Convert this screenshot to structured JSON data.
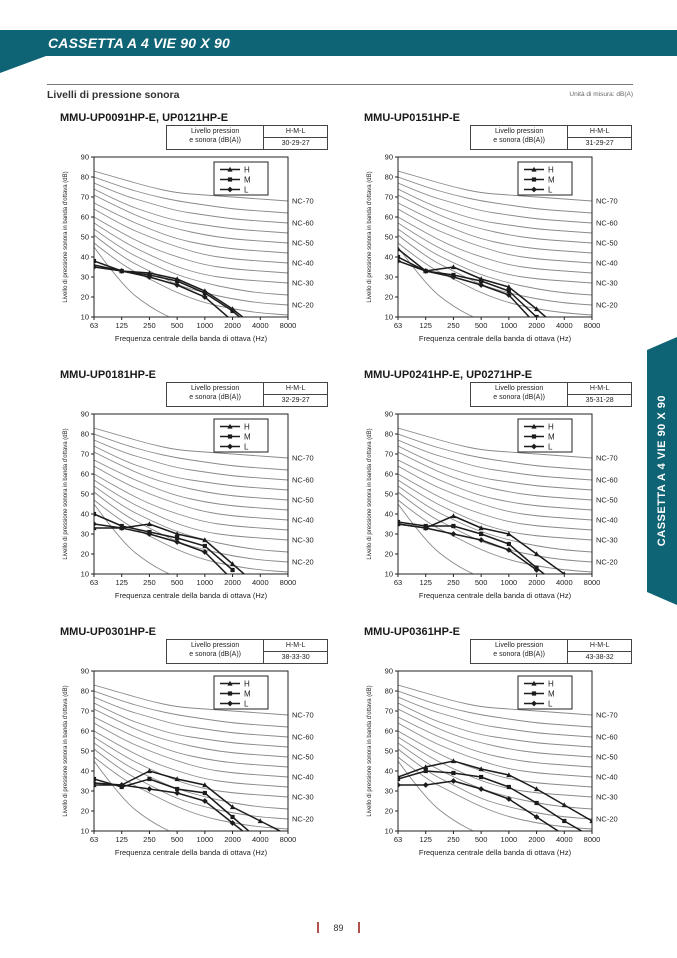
{
  "page": {
    "banner_title": "CASSETTA A 4 VIE 90 X 90",
    "section_title": "Livelli di pressione sonora",
    "unit_note": "Unità di misura: dB(A)",
    "side_tab_label": "CASSETTA A 4 VIE 90 X 90",
    "page_number": "89"
  },
  "colors": {
    "teal": "#0e6374",
    "nc_curve": "#8a8a8a",
    "series_line": "#1c1c1c",
    "footer_marker": "#b0514d"
  },
  "table_labels": {
    "row_label_line1": "Livello pression",
    "row_label_line2": "e sonora (dB(A))",
    "header": "H-M-L"
  },
  "axes": {
    "x_label": "Frequenza centrale della banda di ottava (Hz)",
    "y_label": "Livello di pressione sonora in banda d'ottava (dB)",
    "x_ticks": [
      "63",
      "125",
      "250",
      "500",
      "1000",
      "2000",
      "4000",
      "8000"
    ],
    "y_ticks": [
      90,
      80,
      70,
      60,
      50,
      40,
      30,
      20,
      10
    ],
    "ylim": [
      10,
      90
    ]
  },
  "legend": [
    {
      "name": "H",
      "marker": "triangle"
    },
    {
      "name": "M",
      "marker": "square"
    },
    {
      "name": "L",
      "marker": "diamond"
    }
  ],
  "nc_curves": [
    {
      "name": "NC-15",
      "label": null,
      "values": [
        47,
        36,
        29,
        22,
        17,
        14,
        12,
        11
      ]
    },
    {
      "name": "NC-20",
      "label": "NC-20",
      "values": [
        51,
        40,
        33,
        26,
        22,
        19,
        17,
        16
      ]
    },
    {
      "name": "NC-25",
      "label": null,
      "values": [
        54,
        44,
        37,
        31,
        27,
        24,
        22,
        21
      ]
    },
    {
      "name": "NC-30",
      "label": "NC-30",
      "values": [
        57,
        48,
        41,
        35,
        31,
        29,
        28,
        27
      ]
    },
    {
      "name": "NC-35",
      "label": null,
      "values": [
        60,
        52,
        45,
        40,
        36,
        34,
        33,
        32
      ]
    },
    {
      "name": "NC-40",
      "label": "NC-40",
      "values": [
        64,
        56,
        50,
        45,
        41,
        39,
        38,
        37
      ]
    },
    {
      "name": "NC-45",
      "label": null,
      "values": [
        67,
        60,
        54,
        49,
        46,
        44,
        43,
        42
      ]
    },
    {
      "name": "NC-50",
      "label": "NC-50",
      "values": [
        71,
        64,
        58,
        54,
        51,
        49,
        48,
        47
      ]
    },
    {
      "name": "NC-55",
      "label": null,
      "values": [
        74,
        67,
        62,
        58,
        56,
        54,
        53,
        52
      ]
    },
    {
      "name": "NC-60",
      "label": "NC-60",
      "values": [
        77,
        71,
        67,
        63,
        61,
        59,
        58,
        57
      ]
    },
    {
      "name": "NC-65",
      "label": null,
      "values": [
        80,
        75,
        71,
        68,
        66,
        64,
        63,
        62
      ]
    },
    {
      "name": "NC-70",
      "label": "NC-70",
      "values": [
        83,
        79,
        75,
        72,
        71,
        70,
        69,
        68
      ]
    },
    {
      "name": "hearing-threshold",
      "label": null,
      "values": [
        45,
        26,
        15,
        8,
        2,
        null,
        null,
        null
      ]
    }
  ],
  "chart_data": [
    {
      "type": "line",
      "title": "MMU-UP0091HP-E, UP0121HP-E",
      "sound_pressure_dBA": "30-29-27",
      "x": [
        63,
        125,
        250,
        500,
        1000,
        2000,
        4000,
        8000
      ],
      "series": [
        {
          "name": "H",
          "marker": "triangle",
          "values": [
            36,
            33,
            32,
            29,
            23,
            14,
            3,
            null
          ]
        },
        {
          "name": "M",
          "marker": "square",
          "values": [
            38,
            33,
            31,
            28,
            22,
            13,
            1,
            null
          ]
        },
        {
          "name": "L",
          "marker": "diamond",
          "values": [
            35,
            33,
            30,
            26,
            20,
            8,
            null,
            null
          ]
        }
      ]
    },
    {
      "type": "line",
      "title": "MMU-UP0151HP-E",
      "sound_pressure_dBA": "31-29-27",
      "x": [
        63,
        125,
        250,
        500,
        1000,
        2000,
        4000,
        8000
      ],
      "series": [
        {
          "name": "H",
          "marker": "triangle",
          "values": [
            44,
            33,
            35,
            29,
            25,
            14,
            2,
            null
          ]
        },
        {
          "name": "M",
          "marker": "square",
          "values": [
            40,
            33,
            31,
            28,
            23,
            10,
            null,
            null
          ]
        },
        {
          "name": "L",
          "marker": "diamond",
          "values": [
            38,
            33,
            30,
            26,
            21,
            6,
            null,
            null
          ]
        }
      ]
    },
    {
      "type": "line",
      "title": "MMU-UP0181HP-E",
      "sound_pressure_dBA": "32-29-27",
      "x": [
        63,
        125,
        250,
        500,
        1000,
        2000,
        4000,
        8000
      ],
      "series": [
        {
          "name": "H",
          "marker": "triangle",
          "values": [
            33,
            33,
            35,
            30,
            27,
            15,
            3,
            null
          ]
        },
        {
          "name": "M",
          "marker": "square",
          "values": [
            40,
            34,
            31,
            28,
            24,
            12,
            null,
            null
          ]
        },
        {
          "name": "L",
          "marker": "diamond",
          "values": [
            35,
            33,
            30,
            26,
            21,
            7,
            null,
            null
          ]
        }
      ]
    },
    {
      "type": "line",
      "title": "MMU-UP0241HP-E, UP0271HP-E",
      "sound_pressure_dBA": "35-31-28",
      "x": [
        63,
        125,
        250,
        500,
        1000,
        2000,
        4000,
        8000
      ],
      "series": [
        {
          "name": "H",
          "marker": "triangle",
          "values": [
            35,
            33,
            39,
            33,
            30,
            20,
            10,
            null
          ]
        },
        {
          "name": "M",
          "marker": "square",
          "values": [
            36,
            34,
            34,
            30,
            25,
            13,
            2,
            null
          ]
        },
        {
          "name": "L",
          "marker": "diamond",
          "values": [
            35,
            33,
            30,
            27,
            22,
            12,
            null,
            null
          ]
        }
      ]
    },
    {
      "type": "line",
      "title": "MMU-UP0301HP-E",
      "sound_pressure_dBA": "38-33-30",
      "x": [
        63,
        125,
        250,
        500,
        1000,
        2000,
        4000,
        8000
      ],
      "series": [
        {
          "name": "H",
          "marker": "triangle",
          "values": [
            33,
            33,
            40,
            36,
            33,
            22,
            15,
            8
          ]
        },
        {
          "name": "M",
          "marker": "square",
          "values": [
            36,
            32,
            36,
            31,
            29,
            17,
            5,
            null
          ]
        },
        {
          "name": "L",
          "marker": "diamond",
          "values": [
            34,
            33,
            31,
            29,
            25,
            14,
            3,
            null
          ]
        }
      ]
    },
    {
      "type": "line",
      "title": "MMU-UP0361HP-E",
      "sound_pressure_dBA": "43-38-32",
      "x": [
        63,
        125,
        250,
        500,
        1000,
        2000,
        4000,
        8000
      ],
      "series": [
        {
          "name": "H",
          "marker": "triangle",
          "values": [
            37,
            42,
            45,
            41,
            38,
            31,
            23,
            15
          ]
        },
        {
          "name": "M",
          "marker": "square",
          "values": [
            36,
            40,
            39,
            37,
            32,
            24,
            15,
            7
          ]
        },
        {
          "name": "L",
          "marker": "diamond",
          "values": [
            33,
            33,
            35,
            31,
            26,
            17,
            8,
            null
          ]
        }
      ]
    }
  ]
}
